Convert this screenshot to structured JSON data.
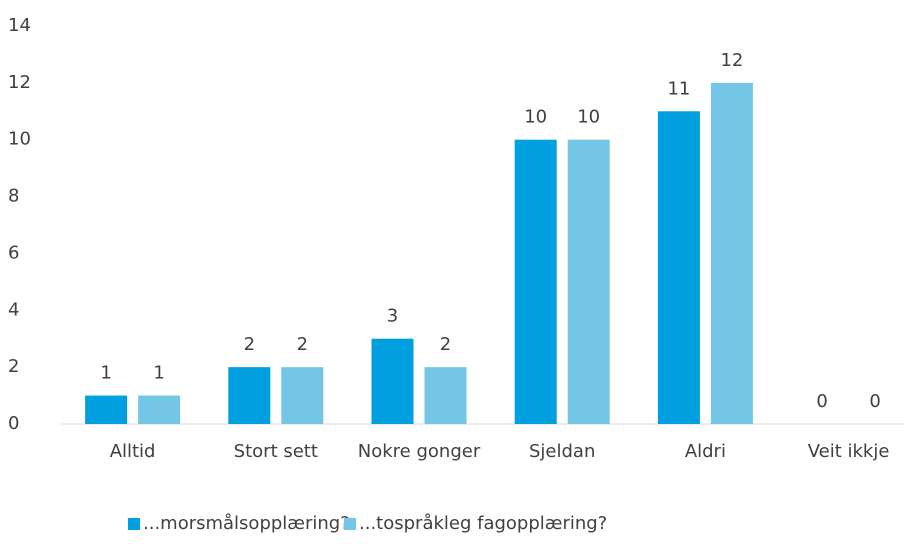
{
  "chart_data": {
    "type": "bar",
    "categories": [
      "Alltid",
      "Stort sett",
      "Nokre gonger",
      "Sjeldan",
      "Aldri",
      "Veit ikkje"
    ],
    "series": [
      {
        "name": "...morsmålsopplæring?",
        "color": "#009fdf",
        "values": [
          1,
          2,
          3,
          10,
          11,
          0
        ]
      },
      {
        "name": "...tospråkleg fagopplæring?",
        "color": "#74c6e6",
        "values": [
          1,
          2,
          2,
          10,
          12,
          0
        ]
      }
    ],
    "ylim": [
      0,
      14
    ],
    "yticks": [
      0,
      2,
      4,
      6,
      8,
      10,
      12,
      14
    ],
    "grid": false,
    "legend": "bottom"
  }
}
